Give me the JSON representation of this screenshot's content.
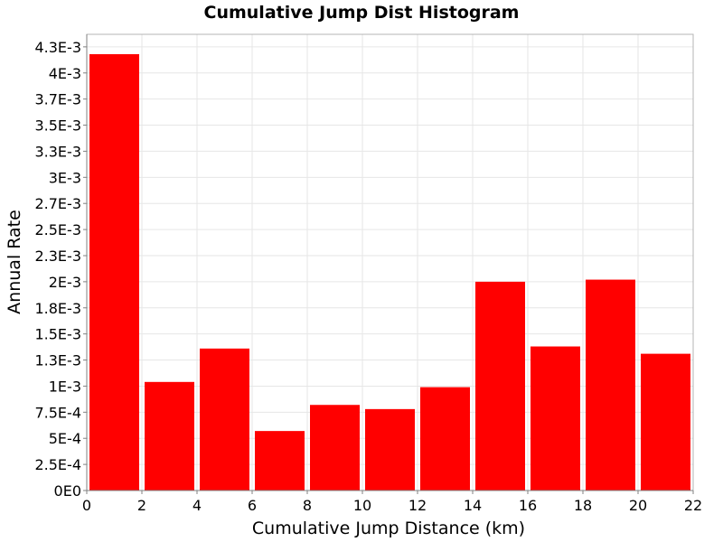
{
  "chart_data": {
    "type": "bar",
    "title": "Cumulative Jump Dist Histogram",
    "xlabel": "Cumulative Jump Distance (km)",
    "ylabel": "Annual Rate",
    "bins": [
      {
        "x0": 0,
        "x1": 2,
        "value": 0.00418
      },
      {
        "x0": 2,
        "x1": 4,
        "value": 0.00104
      },
      {
        "x0": 4,
        "x1": 6,
        "value": 0.00136
      },
      {
        "x0": 6,
        "x1": 8,
        "value": 0.00057
      },
      {
        "x0": 8,
        "x1": 10,
        "value": 0.00082
      },
      {
        "x0": 10,
        "x1": 12,
        "value": 0.00078
      },
      {
        "x0": 12,
        "x1": 14,
        "value": 0.00099
      },
      {
        "x0": 14,
        "x1": 16,
        "value": 0.002
      },
      {
        "x0": 16,
        "x1": 18,
        "value": 0.00138
      },
      {
        "x0": 18,
        "x1": 20,
        "value": 0.00202
      },
      {
        "x0": 20,
        "x1": 22,
        "value": 0.00131
      }
    ],
    "xlim": [
      0,
      22
    ],
    "ylim": [
      0,
      0.00437
    ],
    "x_ticks": [
      0,
      2,
      4,
      6,
      8,
      10,
      12,
      14,
      16,
      18,
      20,
      22
    ],
    "x_tick_labels": [
      "0",
      "2",
      "4",
      "6",
      "8",
      "10",
      "12",
      "14",
      "16",
      "18",
      "20",
      "22"
    ],
    "y_ticks": [
      0,
      0.00025,
      0.0005,
      0.00075,
      0.001,
      0.00125,
      0.0015,
      0.00175,
      0.002,
      0.00225,
      0.0025,
      0.00275,
      0.003,
      0.00325,
      0.0035,
      0.00375,
      0.004,
      0.00425
    ],
    "y_tick_labels": [
      "0E0",
      "2.5E-4",
      "5E-4",
      "7.5E-4",
      "1E-3",
      "1.3E-3",
      "1.5E-3",
      "1.8E-3",
      "2E-3",
      "2.3E-3",
      "2.5E-3",
      "2.7E-3",
      "3E-3",
      "3.3E-3",
      "3.5E-3",
      "3.7E-3",
      "4E-3",
      "4.3E-3"
    ],
    "grid": true,
    "legend": "none",
    "colors": {
      "bar": "#ff0000",
      "grid": "#e6e6e6",
      "frame": "#b4b4b4"
    }
  }
}
